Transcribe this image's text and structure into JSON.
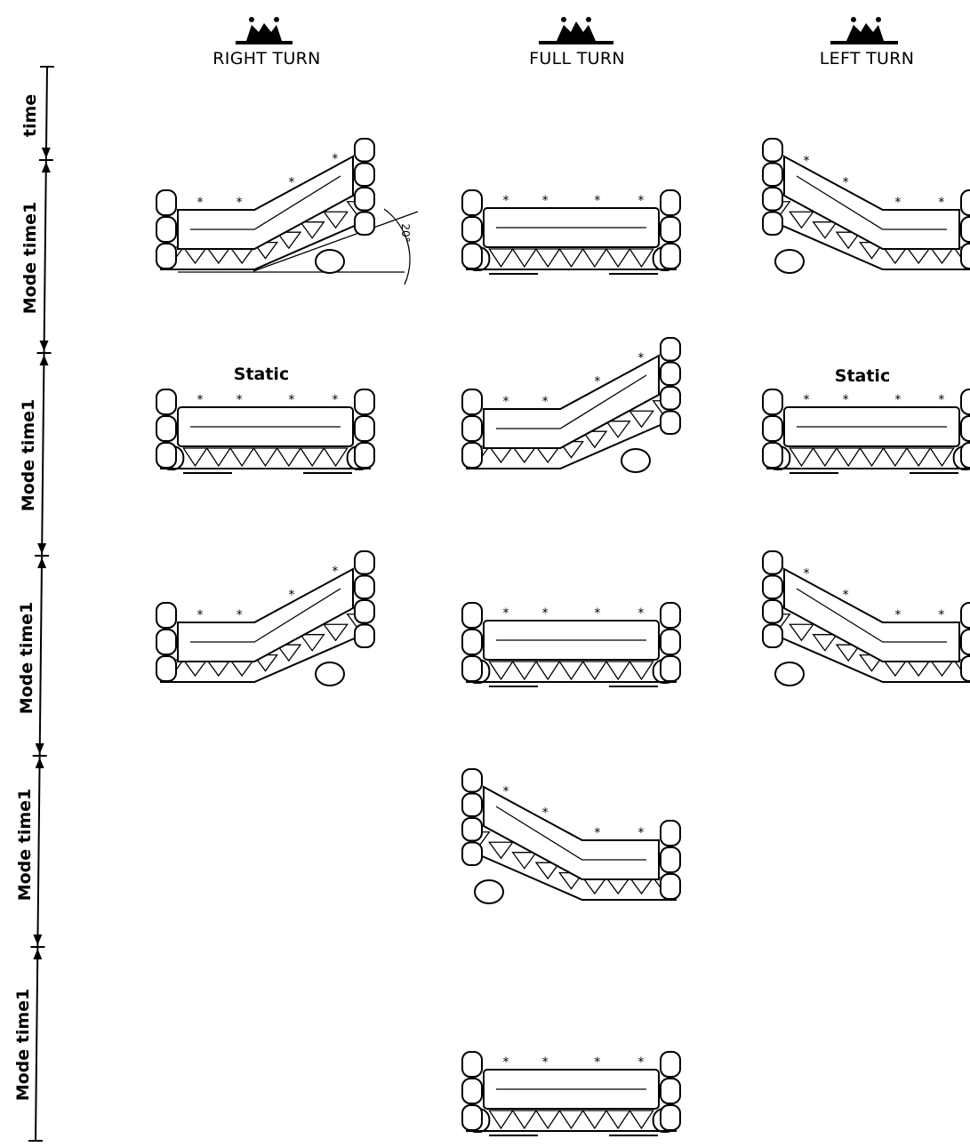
{
  "columns": [
    {
      "id": "right",
      "title": "RIGHT TURN"
    },
    {
      "id": "full",
      "title": "FULL TURN"
    },
    {
      "id": "left",
      "title": "LEFT TURN"
    }
  ],
  "timeline": {
    "first_label": "time",
    "segments": [
      {
        "label": "Mode time1"
      },
      {
        "label": "Mode time1"
      },
      {
        "label": "Mode time1"
      },
      {
        "label": "Mode time1"
      },
      {
        "label": "Mode time1"
      }
    ]
  },
  "static_label": "Static",
  "angle_label": "20°",
  "grid": [
    {
      "row": 0,
      "col": "right",
      "state": "tilt-right"
    },
    {
      "row": 0,
      "col": "full",
      "state": "flat"
    },
    {
      "row": 0,
      "col": "left",
      "state": "tilt-left"
    },
    {
      "row": 1,
      "col": "right",
      "state": "flat",
      "static": true
    },
    {
      "row": 1,
      "col": "full",
      "state": "tilt-right"
    },
    {
      "row": 1,
      "col": "left",
      "state": "flat",
      "static": true
    },
    {
      "row": 2,
      "col": "right",
      "state": "tilt-right"
    },
    {
      "row": 2,
      "col": "full",
      "state": "flat"
    },
    {
      "row": 2,
      "col": "left",
      "state": "tilt-left"
    },
    {
      "row": 3,
      "col": "full",
      "state": "tilt-left"
    },
    {
      "row": 4,
      "col": "full",
      "state": "flat"
    }
  ]
}
